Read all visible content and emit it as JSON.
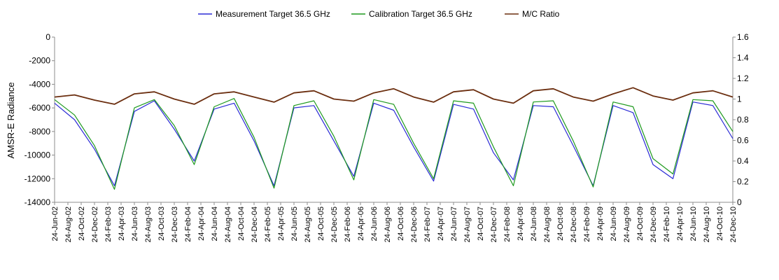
{
  "chart_data": {
    "type": "line",
    "ylabel": "AMSR-E Radiance",
    "ylim": [
      -14000,
      0
    ],
    "y2lim": [
      0,
      1.6
    ],
    "y_ticks": [
      "0",
      "-2000",
      "-4000",
      "-6000",
      "-8000",
      "-10000",
      "-12000",
      "-14000"
    ],
    "y2_ticks": [
      "1.6",
      "1.4",
      "1.2",
      "1",
      "0.8",
      "0.6",
      "0.4",
      "0.2",
      "0"
    ],
    "legend_position": "top",
    "grid": false,
    "x_ticks": [
      "24-Jun-02",
      "24-Aug-02",
      "24-Oct-02",
      "24-Dec-02",
      "24-Feb-03",
      "24-Apr-03",
      "24-Jun-03",
      "24-Aug-03",
      "24-Oct-03",
      "24-Dec-03",
      "24-Feb-04",
      "24-Apr-04",
      "24-Jun-04",
      "24-Aug-04",
      "24-Oct-04",
      "24-Dec-04",
      "24-Feb-05",
      "24-Apr-05",
      "24-Jun-05",
      "24-Aug-05",
      "24-Oct-05",
      "24-Dec-05",
      "24-Feb-06",
      "24-Apr-06",
      "24-Jun-06",
      "24-Aug-06",
      "24-Oct-06",
      "24-Dec-06",
      "24-Feb-07",
      "24-Apr-07",
      "24-Jun-07",
      "24-Aug-07",
      "24-Oct-07",
      "24-Dec-07",
      "24-Feb-08",
      "24-Apr-08",
      "24-Jun-08",
      "24-Aug-08",
      "24-Oct-08",
      "24-Dec-08",
      "24-Feb-09",
      "24-Apr-09",
      "24-Jun-09",
      "24-Aug-09",
      "24-Oct-09",
      "24-Dec-09",
      "24-Feb-10",
      "24-Apr-10",
      "24-Jun-10",
      "24-Aug-10",
      "24-Oct-10",
      "24-Dec-10"
    ],
    "x_months": [
      "2002-06",
      "2002-09",
      "2002-12",
      "2003-03",
      "2003-06",
      "2003-09",
      "2003-12",
      "2004-03",
      "2004-06",
      "2004-09",
      "2004-12",
      "2005-03",
      "2005-06",
      "2005-09",
      "2005-12",
      "2006-03",
      "2006-06",
      "2006-09",
      "2006-12",
      "2007-03",
      "2007-06",
      "2007-09",
      "2007-12",
      "2008-03",
      "2008-06",
      "2008-09",
      "2008-12",
      "2009-03",
      "2009-06",
      "2009-09",
      "2009-12",
      "2010-03",
      "2010-06",
      "2010-09",
      "2010-12"
    ],
    "series": [
      {
        "name": "Measurement Target 36.5 GHz",
        "color": "#2b2bd6",
        "axis": "left",
        "values": [
          -5600,
          -7000,
          -9500,
          -12600,
          -6300,
          -5400,
          -7800,
          -10500,
          -6100,
          -5600,
          -8800,
          -12600,
          -6000,
          -5800,
          -8800,
          -11800,
          -5600,
          -6200,
          -9300,
          -12200,
          -5700,
          -6100,
          -9800,
          -12100,
          -5800,
          -5900,
          -9200,
          -12600,
          -5800,
          -6400,
          -10800,
          -12000,
          -5500,
          -5800,
          -8600
        ]
      },
      {
        "name": "Calibration Target 36.5 GHz",
        "color": "#1f9a1f",
        "axis": "left",
        "values": [
          -5300,
          -6600,
          -9200,
          -12900,
          -6000,
          -5300,
          -7500,
          -10800,
          -5900,
          -5200,
          -8500,
          -12800,
          -5800,
          -5400,
          -8400,
          -12100,
          -5300,
          -5700,
          -9000,
          -12000,
          -5400,
          -5600,
          -9300,
          -12600,
          -5500,
          -5400,
          -8800,
          -12700,
          -5500,
          -5900,
          -10300,
          -11600,
          -5300,
          -5400,
          -8000
        ]
      },
      {
        "name": "M/C Ratio",
        "color": "#6b2e0f",
        "axis": "right",
        "values": [
          1.02,
          1.04,
          0.99,
          0.95,
          1.05,
          1.07,
          1.0,
          0.95,
          1.05,
          1.07,
          1.02,
          0.97,
          1.06,
          1.08,
          1.0,
          0.98,
          1.06,
          1.1,
          1.02,
          0.97,
          1.07,
          1.09,
          1.0,
          0.96,
          1.08,
          1.1,
          1.02,
          0.98,
          1.05,
          1.11,
          1.03,
          0.99,
          1.06,
          1.08,
          1.02
        ]
      }
    ]
  }
}
